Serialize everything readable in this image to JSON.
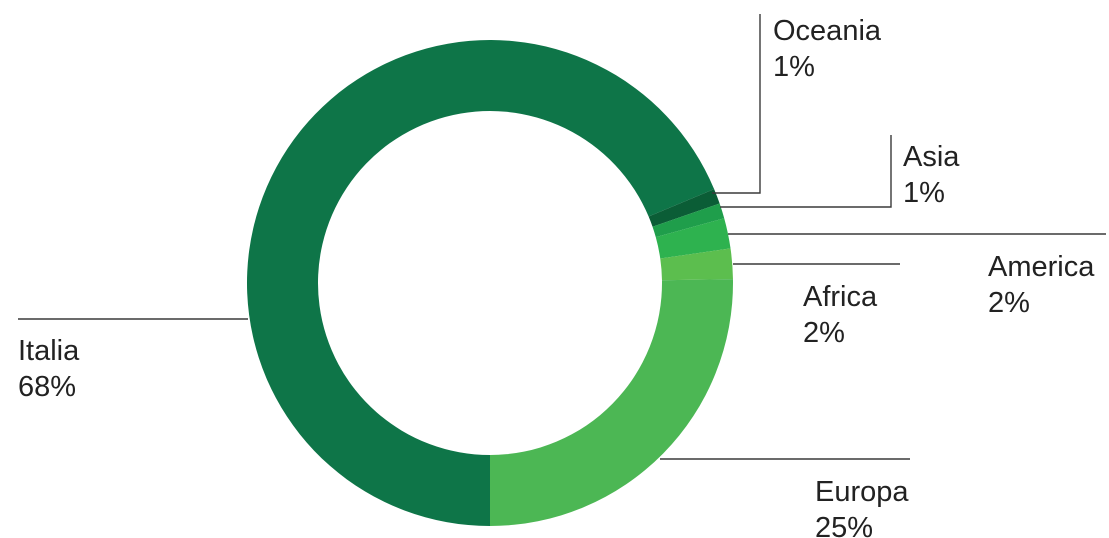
{
  "chart_data": {
    "type": "pie",
    "variant": "donut",
    "start": "bottom",
    "direction": "clockwise",
    "slices": [
      {
        "name": "Italia",
        "value": 68,
        "label": "68%",
        "color": "#0e7548"
      },
      {
        "name": "Oceania",
        "value": 1,
        "label": "1%",
        "color": "#0b5d36"
      },
      {
        "name": "Asia",
        "value": 1,
        "label": "1%",
        "color": "#1f9e4b"
      },
      {
        "name": "America",
        "value": 2,
        "label": "2%",
        "color": "#2eb24f"
      },
      {
        "name": "Africa",
        "value": 2,
        "label": "2%",
        "color": "#5cbe4e"
      },
      {
        "name": "Europa",
        "value": 25,
        "label": "25%",
        "color": "#4cb754"
      }
    ]
  }
}
